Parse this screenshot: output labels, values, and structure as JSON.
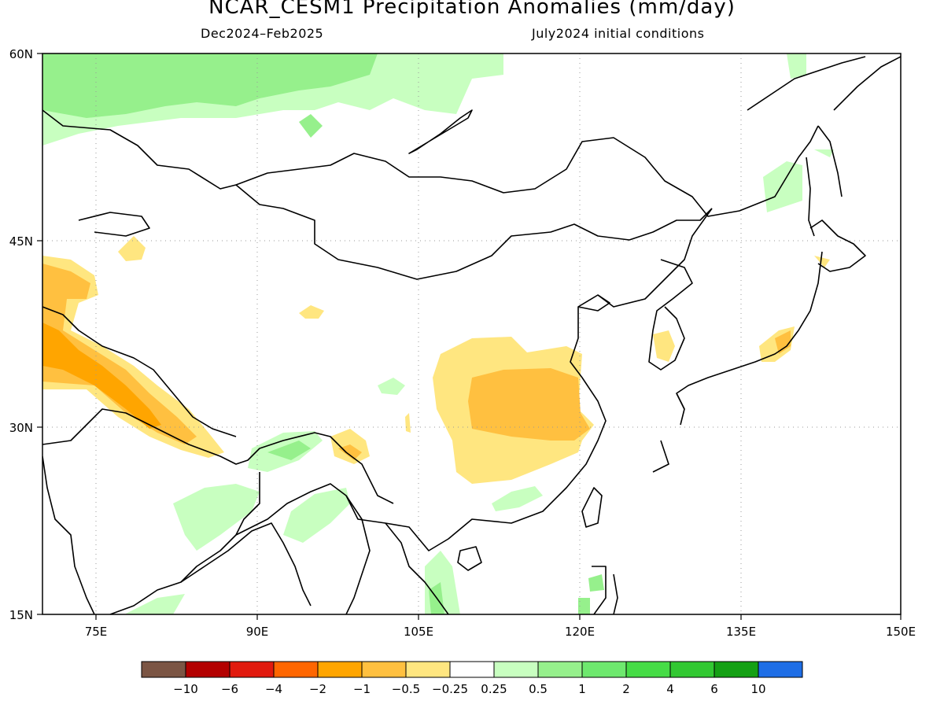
{
  "title": "NCAR_CESM1 Precipitation Anomalies (mm/day)",
  "subtitle_left": "Dec2024–Feb2025",
  "subtitle_right": "July2024 initial conditions",
  "axes": {
    "lon_ticks": [
      "75E",
      "90E",
      "105E",
      "120E",
      "135E",
      "150E"
    ],
    "lat_ticks": [
      "15N",
      "30N",
      "45N",
      "60N"
    ],
    "lon_range": [
      70,
      150
    ],
    "lat_range": [
      15,
      60
    ],
    "grid": "dotted"
  },
  "colorbar": {
    "colors": [
      "#7b5544",
      "#b30000",
      "#e11a0e",
      "#ff6600",
      "#ffa500",
      "#ffc040",
      "#ffe680",
      "#ffffff",
      "#c8ffc0",
      "#96f08c",
      "#6ee86e",
      "#46dc46",
      "#32c832",
      "#14a014",
      "#1e6ee6"
    ],
    "labels": [
      "−10",
      "−6",
      "−4",
      "−2",
      "−1",
      "−0.5",
      "−0.25",
      "0.25",
      "0.5",
      "1",
      "2",
      "4",
      "6",
      "10"
    ]
  }
}
